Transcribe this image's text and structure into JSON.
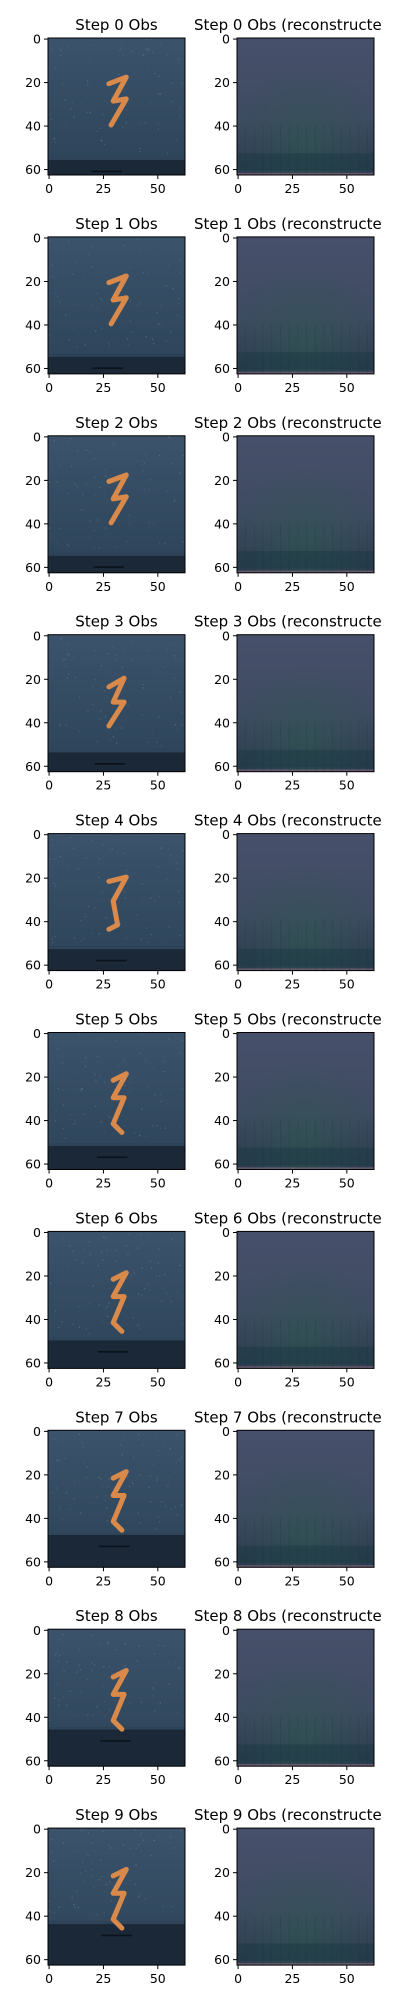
{
  "figure": {
    "background": "#ffffff"
  },
  "colors": {
    "obs_sky_top": "#3b536b",
    "obs_sky_bottom": "#2c4358",
    "obs_floor": "#1a2838",
    "obs_digit": "#d9894a",
    "recon_top": "#47506a",
    "recon_bottom": "#2a3a4e",
    "recon_floor_band": "#1e3a46",
    "recon_edge_pink": "#8a6a82",
    "axis": "#000000"
  },
  "chart_data": {
    "type": "image_grid",
    "rows": 10,
    "cols": 2,
    "axis": {
      "xlim": [
        0,
        63
      ],
      "ylim": [
        63,
        0
      ],
      "xticks": [
        0,
        25,
        50
      ],
      "yticks": [
        0,
        20,
        40,
        60
      ],
      "xtick_labels": [
        "0",
        "25",
        "50"
      ],
      "ytick_labels": [
        "0",
        "20",
        "40",
        "60"
      ]
    },
    "panels": [
      {
        "row": 0,
        "col": 0,
        "title": "Step 0 Obs",
        "kind": "obs",
        "floor_row": 55,
        "pose": 0
      },
      {
        "row": 0,
        "col": 1,
        "title": "Step 0 Obs (reconstructe",
        "kind": "recon"
      },
      {
        "row": 1,
        "col": 0,
        "title": "Step 1 Obs",
        "kind": "obs",
        "floor_row": 54,
        "pose": 0
      },
      {
        "row": 1,
        "col": 1,
        "title": "Step 1 Obs (reconstructe",
        "kind": "recon"
      },
      {
        "row": 2,
        "col": 0,
        "title": "Step 2 Obs",
        "kind": "obs",
        "floor_row": 54,
        "pose": 0
      },
      {
        "row": 2,
        "col": 1,
        "title": "Step 2 Obs (reconstructe",
        "kind": "recon"
      },
      {
        "row": 3,
        "col": 0,
        "title": "Step 3 Obs",
        "kind": "obs",
        "floor_row": 53,
        "pose": 1
      },
      {
        "row": 3,
        "col": 1,
        "title": "Step 3 Obs (reconstructe",
        "kind": "recon"
      },
      {
        "row": 4,
        "col": 0,
        "title": "Step 4 Obs",
        "kind": "obs",
        "floor_row": 52,
        "pose": 2
      },
      {
        "row": 4,
        "col": 1,
        "title": "Step 4 Obs (reconstructe",
        "kind": "recon"
      },
      {
        "row": 5,
        "col": 0,
        "title": "Step 5 Obs",
        "kind": "obs",
        "floor_row": 51,
        "pose": 3
      },
      {
        "row": 5,
        "col": 1,
        "title": "Step 5 Obs (reconstructe",
        "kind": "recon"
      },
      {
        "row": 6,
        "col": 0,
        "title": "Step 6 Obs",
        "kind": "obs",
        "floor_row": 49,
        "pose": 3
      },
      {
        "row": 6,
        "col": 1,
        "title": "Step 6 Obs (reconstructe",
        "kind": "recon"
      },
      {
        "row": 7,
        "col": 0,
        "title": "Step 7 Obs",
        "kind": "obs",
        "floor_row": 47,
        "pose": 3
      },
      {
        "row": 7,
        "col": 1,
        "title": "Step 7 Obs (reconstructe",
        "kind": "recon"
      },
      {
        "row": 8,
        "col": 0,
        "title": "Step 8 Obs",
        "kind": "obs",
        "floor_row": 45,
        "pose": 3
      },
      {
        "row": 8,
        "col": 1,
        "title": "Step 8 Obs (reconstructe",
        "kind": "recon"
      },
      {
        "row": 9,
        "col": 0,
        "title": "Step 9 Obs",
        "kind": "obs",
        "floor_row": 43,
        "pose": 3
      },
      {
        "row": 9,
        "col": 1,
        "title": "Step 9 Obs (reconstructe",
        "kind": "recon"
      }
    ]
  }
}
